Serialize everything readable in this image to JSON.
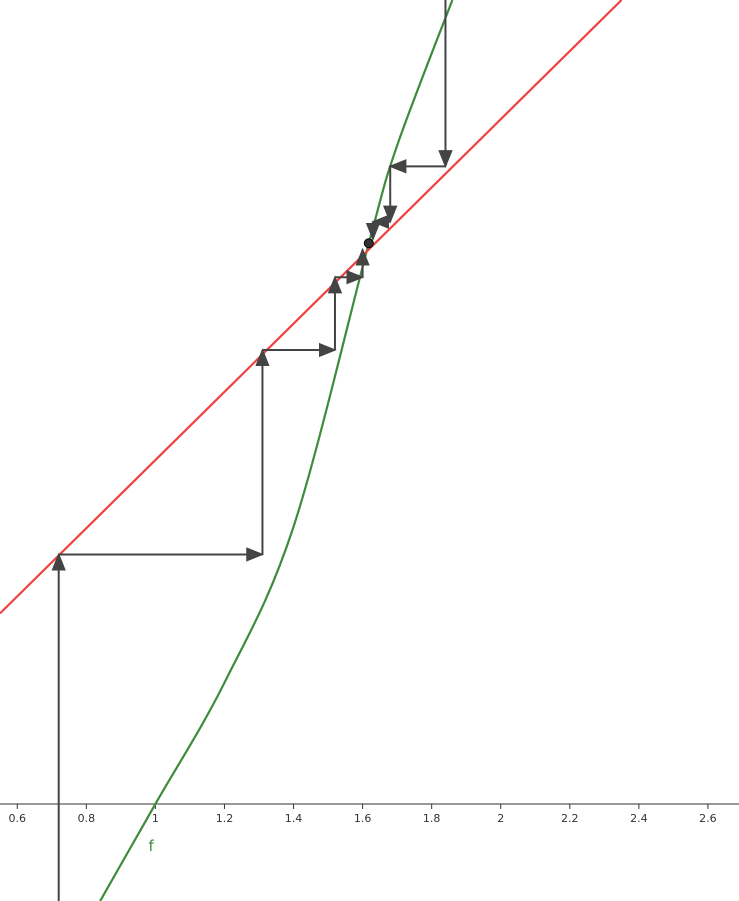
{
  "chart_data": {
    "type": "line",
    "title": "",
    "xlabel": "",
    "ylabel": "",
    "xlim": [
      0.55,
      2.69
    ],
    "ylim": [
      -0.28,
      2.32
    ],
    "x_ticks": [
      "0.6",
      "0.8",
      "1",
      "1.2",
      "1.4",
      "1.6",
      "1.8",
      "2",
      "2.2",
      "2.4",
      "2.6"
    ],
    "curve_label": "f",
    "series": [
      {
        "name": "f",
        "color": "#3c8c3c",
        "points": [
          [
            0.84,
            -0.28
          ],
          [
            1.0,
            0.0
          ],
          [
            1.2,
            0.35
          ],
          [
            1.4,
            0.8
          ],
          [
            1.618,
            1.618
          ],
          [
            1.7,
            1.9
          ],
          [
            1.86,
            2.32
          ]
        ]
      },
      {
        "name": "",
        "color": "#f04040",
        "points": [
          [
            0.55,
            0.55
          ],
          [
            2.35,
            2.32
          ]
        ]
      }
    ],
    "fixed_point": [
      1.618,
      1.618
    ],
    "cobweb_color": "#444444",
    "cobweb_left": [
      [
        0.72,
        -0.28
      ],
      [
        0.72,
        0.72
      ],
      [
        1.31,
        0.72
      ],
      [
        1.31,
        1.31
      ],
      [
        1.52,
        1.31
      ],
      [
        1.52,
        1.52
      ],
      [
        1.6,
        1.52
      ],
      [
        1.6,
        1.6
      ]
    ],
    "cobweb_right": [
      [
        1.84,
        2.32
      ],
      [
        1.84,
        1.84
      ],
      [
        1.68,
        1.84
      ],
      [
        1.68,
        1.68
      ],
      [
        1.63,
        1.68
      ],
      [
        1.63,
        1.63
      ]
    ]
  }
}
